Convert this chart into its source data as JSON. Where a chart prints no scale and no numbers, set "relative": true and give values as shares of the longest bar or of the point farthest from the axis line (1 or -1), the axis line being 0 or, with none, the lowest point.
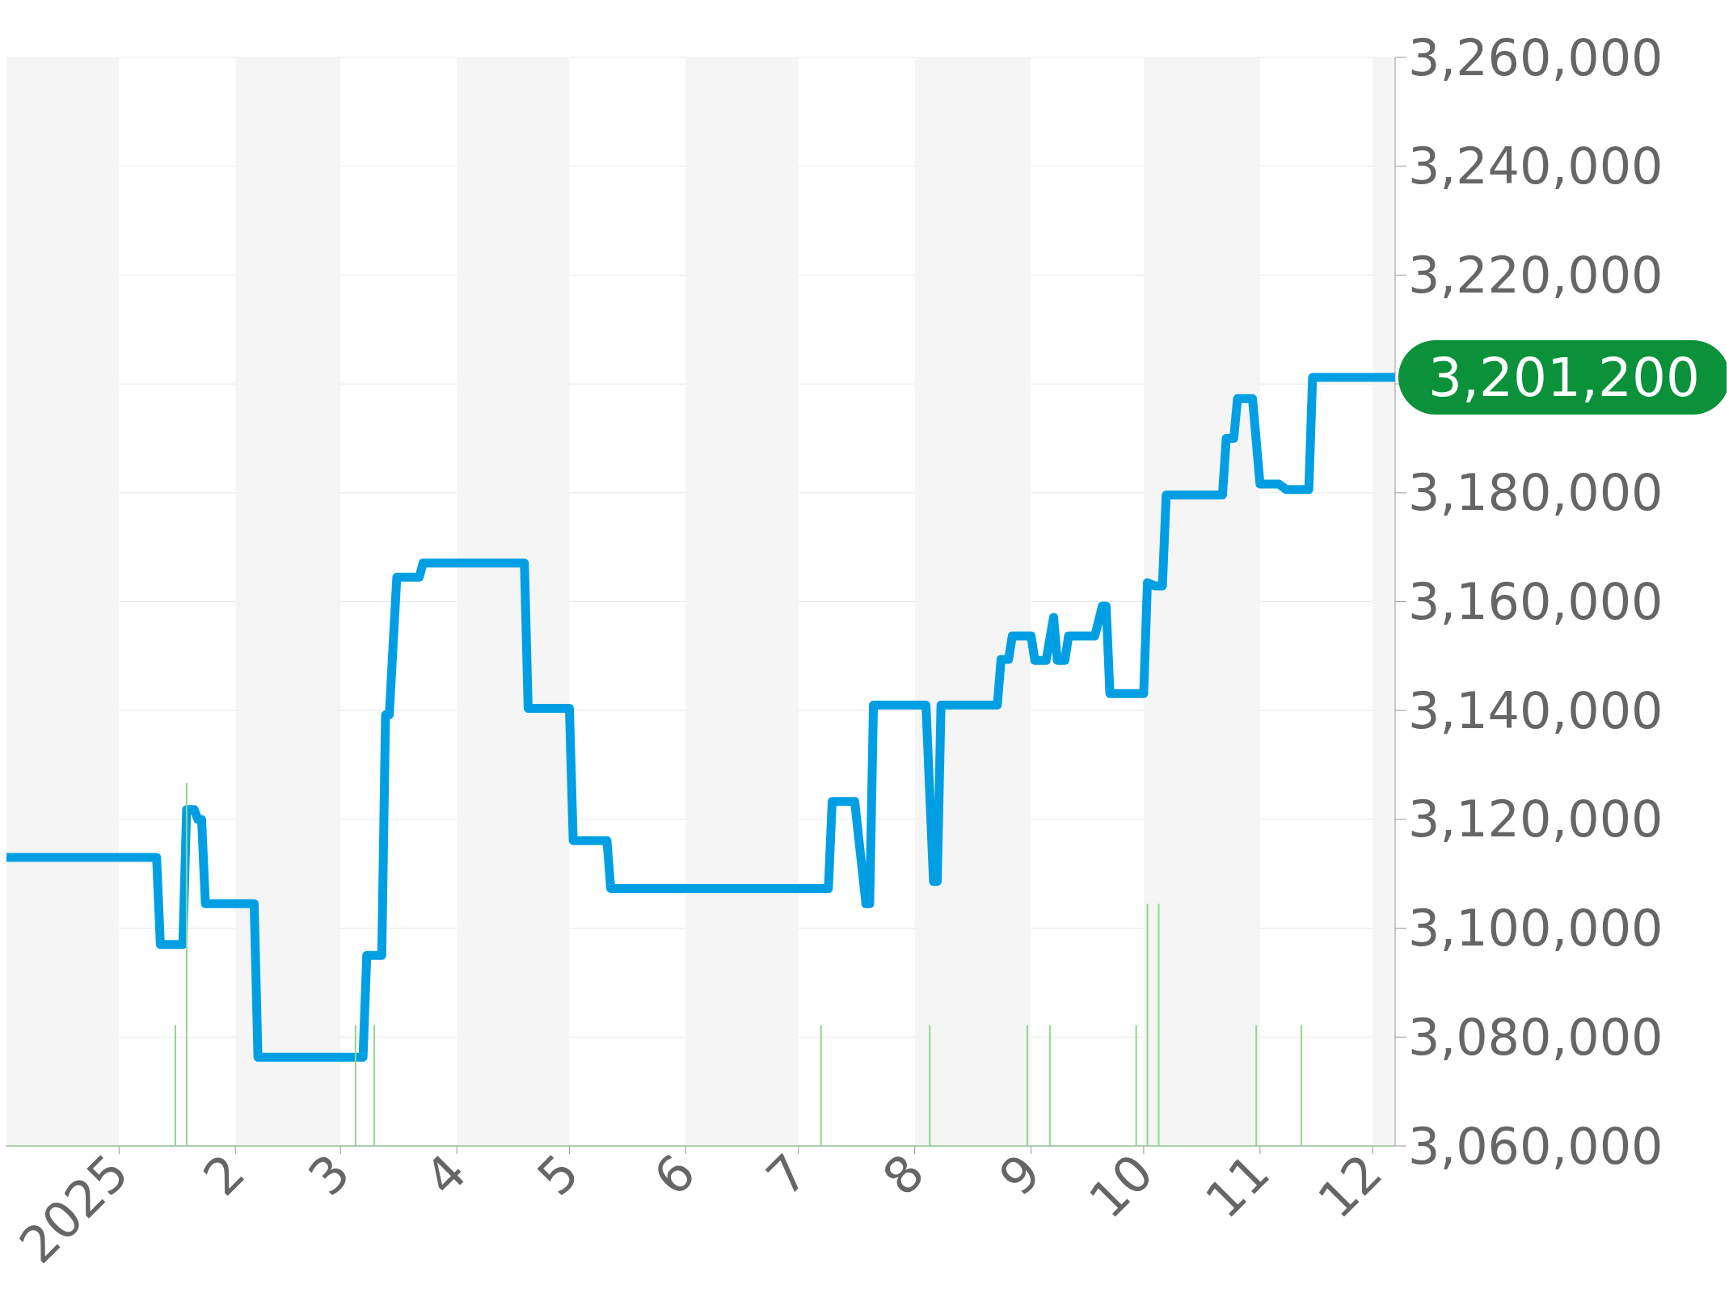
{
  "chart_data": [
    {
      "type": "line",
      "xlim": [
        "2024-12-02",
        "2025-12-07"
      ],
      "xticks": [
        {
          "value": "2025-01-01",
          "label": "2025"
        },
        {
          "value": "2025-02-01",
          "label": "2"
        },
        {
          "value": "2025-03-01",
          "label": "3"
        },
        {
          "value": "2025-04-01",
          "label": "4"
        },
        {
          "value": "2025-05-01",
          "label": "5"
        },
        {
          "value": "2025-06-01",
          "label": "6"
        },
        {
          "value": "2025-07-01",
          "label": "7"
        },
        {
          "value": "2025-08-01",
          "label": "8"
        },
        {
          "value": "2025-09-01",
          "label": "9"
        },
        {
          "value": "2025-10-01",
          "label": "10"
        },
        {
          "value": "2025-11-01",
          "label": "11"
        },
        {
          "value": "2025-12-01",
          "label": "12"
        }
      ],
      "ylim": [
        3060000,
        3260000
      ],
      "yticks": [
        {
          "value": 3060000,
          "label": "3,060,000"
        },
        {
          "value": 3080000,
          "label": "3,080,000"
        },
        {
          "value": 3100000,
          "label": "3,100,000"
        },
        {
          "value": 3120000,
          "label": "3,120,000"
        },
        {
          "value": 3140000,
          "label": "3,140,000"
        },
        {
          "value": 3160000,
          "label": "3,160,000"
        },
        {
          "value": 3180000,
          "label": "3,180,000"
        },
        {
          "value": 3200000,
          "label": null
        },
        {
          "value": 3220000,
          "label": "3,220,000"
        },
        {
          "value": 3240000,
          "label": "3,240,000"
        },
        {
          "value": 3260000,
          "label": "3,260,000"
        }
      ],
      "grid": "y",
      "marker": "none",
      "line_style": "solid",
      "bands": [
        {
          "axis": "x",
          "from": "2024-12-02",
          "to": "2025-01-01",
          "color": "#f5f5f5"
        },
        {
          "axis": "x",
          "from": "2025-02-01",
          "to": "2025-03-01",
          "color": "#f5f5f5"
        },
        {
          "axis": "x",
          "from": "2025-04-01",
          "to": "2025-05-01",
          "color": "#f5f5f5"
        },
        {
          "axis": "x",
          "from": "2025-06-01",
          "to": "2025-07-01",
          "color": "#f5f5f5"
        },
        {
          "axis": "x",
          "from": "2025-08-01",
          "to": "2025-09-01",
          "color": "#f5f5f5"
        },
        {
          "axis": "x",
          "from": "2025-10-01",
          "to": "2025-11-01",
          "color": "#f5f5f5"
        },
        {
          "axis": "x",
          "from": "2025-12-01",
          "to": "2025-12-07",
          "color": "#f5f5f5"
        }
      ],
      "series": [
        {
          "color": "#009fe3",
          "x": [
            "2024-12-02",
            "2025-01-11",
            "2025-01-12",
            "2025-01-18",
            "2025-01-19",
            "2025-01-21",
            "2025-01-22",
            "2025-01-23",
            "2025-01-24",
            "2025-02-06",
            "2025-02-07",
            "2025-03-07",
            "2025-03-08",
            "2025-03-12",
            "2025-03-13",
            "2025-03-14",
            "2025-03-16",
            "2025-03-22",
            "2025-03-23",
            "2025-04-19",
            "2025-04-20",
            "2025-05-01",
            "2025-05-02",
            "2025-05-11",
            "2025-05-12",
            "2025-07-09",
            "2025-07-10",
            "2025-07-16",
            "2025-07-19",
            "2025-07-20",
            "2025-07-21",
            "2025-08-04",
            "2025-08-06",
            "2025-08-07",
            "2025-08-08",
            "2025-08-23",
            "2025-08-24",
            "2025-08-26",
            "2025-08-27",
            "2025-09-01",
            "2025-09-02",
            "2025-09-05",
            "2025-09-07",
            "2025-09-08",
            "2025-09-10",
            "2025-09-11",
            "2025-09-18",
            "2025-09-20",
            "2025-09-21",
            "2025-09-22",
            "2025-10-01",
            "2025-10-02",
            "2025-10-04",
            "2025-10-06",
            "2025-10-07",
            "2025-10-22",
            "2025-10-23",
            "2025-10-25",
            "2025-10-26",
            "2025-10-30",
            "2025-11-01",
            "2025-11-06",
            "2025-11-08",
            "2025-11-14",
            "2025-11-15",
            "2025-12-07"
          ],
          "values": [
            3113000,
            3113000,
            3097000,
            3097000,
            3121800,
            3121800,
            3120000,
            3120000,
            3104500,
            3104500,
            3076300,
            3076300,
            3095000,
            3095000,
            3139200,
            3139200,
            3164500,
            3164500,
            3167100,
            3167100,
            3140400,
            3140400,
            3116100,
            3116100,
            3107300,
            3107300,
            3123300,
            3123300,
            3104500,
            3104500,
            3141000,
            3141000,
            3108600,
            3108600,
            3141000,
            3141000,
            3149400,
            3149400,
            3153700,
            3153700,
            3149200,
            3149200,
            3157100,
            3149200,
            3149200,
            3153700,
            3153700,
            3159200,
            3159200,
            3143100,
            3143100,
            3163500,
            3162900,
            3162900,
            3179600,
            3179600,
            3190000,
            3190000,
            3197300,
            3197300,
            3181600,
            3181600,
            3180600,
            3180600,
            3201200,
            3201200
          ],
          "value_labels": [
            null,
            null,
            null,
            null,
            null,
            null,
            null,
            null,
            null,
            null,
            null,
            null,
            null,
            null,
            null,
            null,
            null,
            null,
            null,
            null,
            null,
            null,
            null,
            null,
            null,
            null,
            null,
            null,
            null,
            null,
            null,
            null,
            null,
            null,
            null,
            null,
            null,
            null,
            null,
            null,
            null,
            null,
            null,
            null,
            null,
            null,
            null,
            null,
            null,
            null,
            null,
            null,
            null,
            null,
            null,
            null,
            null,
            null,
            null,
            null,
            null,
            null,
            null,
            null,
            null,
            "3,201,200"
          ]
        }
      ]
    },
    {
      "type": "bar",
      "relative": true,
      "xlim": [
        "2024-12-02",
        "2025-12-07"
      ],
      "series": [
        {
          "color": "#8fd68f",
          "x": [
            "2025-01-16",
            "2025-01-19",
            "2025-03-05",
            "2025-03-10",
            "2025-07-07",
            "2025-08-05",
            "2025-08-31",
            "2025-09-06",
            "2025-09-29",
            "2025-10-02",
            "2025-10-05",
            "2025-10-31",
            "2025-11-12"
          ],
          "values": [
            0.333,
            1,
            0.333,
            0.333,
            0.333,
            0.333,
            0.333,
            0.333,
            0.333,
            0.667,
            0.667,
            0.333,
            0.333
          ]
        }
      ]
    }
  ]
}
